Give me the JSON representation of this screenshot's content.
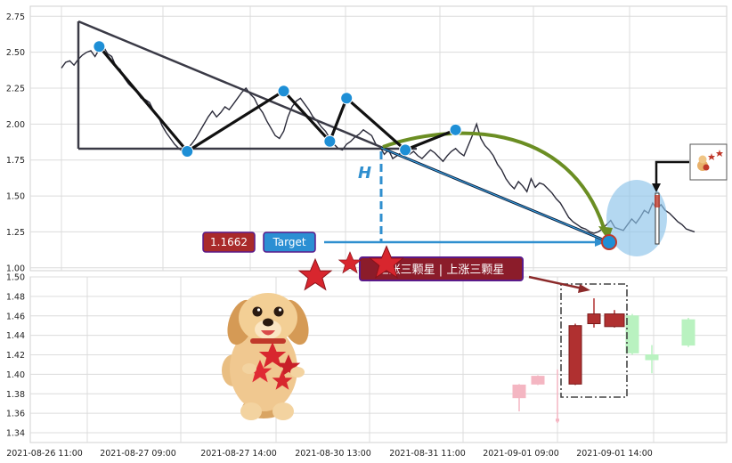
{
  "chart_data": [
    {
      "type": "line",
      "title": "",
      "ylim": [
        0.98,
        2.82
      ],
      "y_ticks": [
        "1.00",
        "1.25",
        "1.50",
        "1.75",
        "2.00",
        "2.25",
        "2.50",
        "2.75"
      ],
      "grid": true,
      "series": [
        {
          "values": [
            2.39,
            2.43,
            2.44,
            2.41,
            2.45,
            2.48,
            2.5,
            2.51,
            2.47,
            2.52,
            2.54,
            2.49,
            2.47,
            2.4,
            2.38,
            2.32,
            2.28,
            2.25,
            2.22,
            2.18,
            2.17,
            2.15,
            2.09,
            2.06,
            1.99,
            1.94,
            1.9,
            1.86,
            1.83,
            1.81,
            1.83,
            1.86,
            1.9,
            1.95,
            2.0,
            2.05,
            2.09,
            2.05,
            2.08,
            2.12,
            2.1,
            2.14,
            2.18,
            2.22,
            2.25,
            2.21,
            2.18,
            2.12,
            2.08,
            2.02,
            1.97,
            1.92,
            1.9,
            1.95,
            2.05,
            2.12,
            2.16,
            2.18,
            2.14,
            2.1,
            2.05,
            2.02,
            1.98,
            1.95,
            1.9,
            1.86,
            1.83,
            1.82,
            1.86,
            1.88,
            1.91,
            1.93,
            1.96,
            1.94,
            1.92,
            1.86,
            1.84,
            1.79,
            1.82,
            1.76,
            1.78,
            1.8,
            1.82,
            1.79,
            1.81,
            1.78,
            1.76,
            1.79,
            1.82,
            1.8,
            1.77,
            1.74,
            1.78,
            1.81,
            1.83,
            1.8,
            1.78,
            1.85,
            1.92,
            2.0,
            1.9,
            1.85,
            1.82,
            1.78,
            1.72,
            1.68,
            1.62,
            1.58,
            1.55,
            1.6,
            1.57,
            1.53,
            1.62,
            1.56,
            1.59,
            1.58,
            1.55,
            1.52,
            1.48,
            1.45,
            1.4,
            1.35,
            1.32,
            1.3,
            1.28,
            1.27,
            1.25,
            1.24,
            1.25,
            1.27,
            1.3,
            1.33,
            1.28,
            1.27,
            1.26,
            1.3,
            1.34,
            1.31,
            1.35,
            1.4,
            1.38,
            1.45,
            1.41,
            1.44,
            1.4,
            1.38,
            1.35,
            1.32,
            1.3,
            1.27,
            1.26,
            1.25
          ],
          "color": "#2b2b3a"
        }
      ],
      "pattern_points": [
        {
          "x": 9,
          "y": 2.54
        },
        {
          "x": 30,
          "y": 1.81
        },
        {
          "x": 53,
          "y": 2.23
        },
        {
          "x": 64,
          "y": 1.88
        },
        {
          "x": 68,
          "y": 2.18
        },
        {
          "x": 82,
          "y": 1.82
        },
        {
          "x": 94,
          "y": 1.96
        },
        {
          "x": 139,
          "y": 1.23
        }
      ],
      "annotations": {
        "height_label": "H",
        "price_box": "1.1662",
        "target_label": "Target",
        "banner": "上涨三颗星 | 上涨三颗星"
      },
      "colors": {
        "line": "#2b2b3a",
        "pattern": "#111111",
        "triangle": "#3a3a46",
        "target_arrow": "#2f8fcf",
        "curve_arrow": "#6b8e23",
        "marker": "#1e8fd6",
        "price_box": "#a92a2a",
        "target_box": "#2b8fd3",
        "banner_bg": "#8b1c2a"
      }
    },
    {
      "type": "candlestick",
      "ylim": [
        1.33,
        1.5
      ],
      "y_ticks": [
        "1.34",
        "1.36",
        "1.38",
        "1.40",
        "1.42",
        "1.44",
        "1.46",
        "1.48",
        "1.50"
      ],
      "grid": true,
      "x_ticks": [
        "2021-08-26 11:00",
        "2021-08-27 09:00",
        "2021-08-27 14:00",
        "2021-08-30 13:00",
        "2021-08-31 11:00",
        "2021-09-01 09:00",
        "2021-09-01 14:00"
      ],
      "candles": [
        {
          "open": 1.376,
          "close": 1.389,
          "high": 1.39,
          "low": 1.362,
          "color": "#f4b6c2"
        },
        {
          "open": 1.39,
          "close": 1.398,
          "high": 1.399,
          "low": 1.389,
          "color": "#f4b6c2"
        },
        {
          "open": 1.352,
          "close": 1.354,
          "high": 1.405,
          "low": 1.35,
          "color": "#f4b6c2"
        },
        {
          "open": 1.39,
          "close": 1.45,
          "high": 1.452,
          "low": 1.389,
          "color": "#b03030"
        },
        {
          "open": 1.452,
          "close": 1.462,
          "high": 1.478,
          "low": 1.448,
          "color": "#b03030"
        },
        {
          "open": 1.462,
          "close": 1.449,
          "high": 1.466,
          "low": 1.448,
          "color": "#b03030"
        },
        {
          "open": 1.46,
          "close": 1.422,
          "high": 1.462,
          "low": 1.42,
          "color": "#b9f2c0"
        },
        {
          "open": 1.42,
          "close": 1.415,
          "high": 1.43,
          "low": 1.401,
          "color": "#b9f2c0"
        },
        {
          "open": 1.456,
          "close": 1.43,
          "high": 1.458,
          "low": 1.428,
          "color": "#b9f2c0"
        }
      ],
      "colors": {
        "up": "#b03030",
        "down": "#b9f2c0",
        "pink": "#f4b6c2",
        "box": "#444444",
        "arrow": "#8b2a2a"
      }
    }
  ]
}
